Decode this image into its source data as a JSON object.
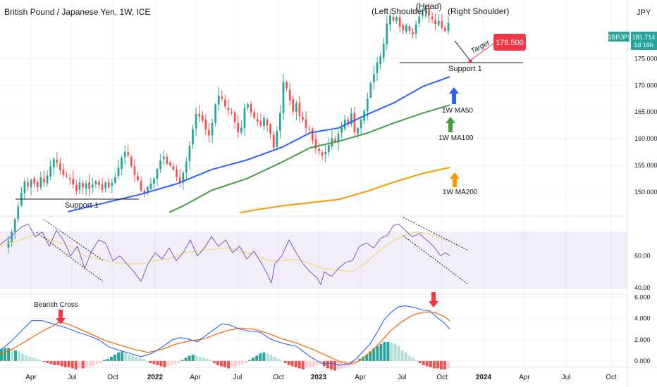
{
  "header": {
    "title": "British Pound / Japanese Yen, 1W, ICE",
    "currency": "JPY"
  },
  "price_badge": {
    "symbol": "GBPJPY",
    "price": "181.714",
    "countdown": "1d 16h"
  },
  "chart_data": [
    {
      "type": "candlestick",
      "title": "British Pound / Japanese Yen, 1W, ICE",
      "x_ticks": [
        "Apr",
        "Jul",
        "Oct",
        "2022",
        "Apr",
        "Jul",
        "Oct",
        "2023",
        "Apr",
        "Jul",
        "Oct",
        "2024",
        "Apr",
        "Jul",
        "Oct"
      ],
      "y_ticks": [
        "150.000",
        "155.000",
        "160.000",
        "165.000",
        "170.000",
        "175.000"
      ],
      "ylim": [
        145.5,
        186
      ],
      "close_series": [
        140.8,
        142.5,
        144.9,
        147.3,
        149.8,
        152.0,
        151.1,
        152.3,
        151.6,
        150.9,
        152.7,
        151.8,
        153.1,
        154.8,
        156.2,
        155.5,
        154.1,
        153.2,
        152.9,
        152.4,
        151.4,
        150.2,
        151.8,
        150.9,
        151.6,
        150.6,
        151.4,
        152.0,
        151.3,
        150.4,
        151.8,
        150.9,
        151.7,
        152.8,
        154.6,
        156.4,
        157.6,
        156.9,
        154.8,
        153.2,
        152.2,
        150.3,
        149.6,
        150.9,
        151.6,
        152.5,
        154.3,
        155.9,
        156.7,
        155.3,
        155.0,
        154.2,
        152.8,
        151.8,
        153.6,
        155.7,
        158.7,
        161.8,
        164.6,
        164.2,
        163.3,
        161.7,
        160.6,
        162.9,
        166.4,
        168.1,
        167.5,
        166.1,
        165.3,
        164.8,
        163.1,
        161.2,
        162.1,
        165.8,
        166.5,
        164.9,
        163.9,
        163.2,
        162.4,
        163.9,
        162.5,
        160.9,
        158.3,
        161.4,
        164.8,
        170.6,
        169.4,
        167.2,
        165.1,
        166.7,
        164.2,
        163.5,
        162.0,
        161.8,
        159.7,
        158.1,
        157.7,
        156.8,
        157.5,
        158.8,
        160.1,
        159.4,
        160.9,
        162.1,
        163.6,
        162.7,
        164.8,
        161.2,
        162.0,
        163.6,
        165.2,
        167.5,
        170.4,
        172.1,
        174.3,
        175.4,
        177.8,
        181.6,
        183.1,
        182.2,
        182.8,
        181.0,
        180.3,
        181.2,
        180.2,
        179.5,
        181.4,
        182.9,
        183.5,
        184.6,
        183.1,
        182.4,
        181.5,
        182.1,
        180.8,
        180.2,
        181.7
      ],
      "ma50": [
        [
          96,
          146.3
        ],
        [
          200,
          149.6
        ],
        [
          250,
          151.5
        ],
        [
          300,
          154.2
        ],
        [
          350,
          156.0
        ],
        [
          400,
          158.4
        ],
        [
          440,
          161.1
        ],
        [
          480,
          162.0
        ],
        [
          520,
          164.5
        ],
        [
          560,
          166.8
        ],
        [
          600,
          169.8
        ],
        [
          638,
          171.6
        ]
      ],
      "ma100": [
        [
          240,
          146.2
        ],
        [
          260,
          147.4
        ],
        [
          300,
          150.3
        ],
        [
          350,
          152.5
        ],
        [
          400,
          155.6
        ],
        [
          440,
          158.3
        ],
        [
          480,
          159.5
        ],
        [
          520,
          161.0
        ],
        [
          560,
          163.0
        ],
        [
          600,
          164.8
        ],
        [
          638,
          166.3
        ]
      ],
      "ma200": [
        [
          340,
          146.1
        ],
        [
          360,
          146.6
        ],
        [
          400,
          147.4
        ],
        [
          440,
          148.0
        ],
        [
          480,
          148.6
        ],
        [
          520,
          150.1
        ],
        [
          560,
          151.9
        ],
        [
          600,
          153.5
        ],
        [
          638,
          154.6
        ]
      ],
      "annotations": {
        "left_shoulder": "(Left Shoulder)",
        "head": "(Head)",
        "right_shoulder": "(Right Shoulder)",
        "target_label": "Target",
        "target_value": "176.500",
        "support_top": "Support 1",
        "support_bottom": "Support 1",
        "ma50_label": "1W MA50",
        "ma100_label": "1W MA100",
        "ma200_label": "1W MA200"
      },
      "colors": {
        "up": "#26a69a",
        "down": "#ef5350",
        "ma50": "#2962ff",
        "ma100": "#43a047",
        "ma200": "#ff9800",
        "target_badge": "#f23645",
        "price_badge": "#26a69a",
        "arrow_blue": "#2962ff",
        "arrow_green": "#43a047",
        "arrow_orange": "#ff9800",
        "arrow_red": "#f23645"
      }
    },
    {
      "type": "line",
      "name": "RSI",
      "y_ticks": [
        "40.00",
        "60.00"
      ],
      "ylim": [
        36,
        85
      ],
      "rsi": [
        [
          0,
          67
        ],
        [
          15,
          72
        ],
        [
          30,
          78
        ],
        [
          40,
          80
        ],
        [
          50,
          72
        ],
        [
          60,
          75
        ],
        [
          70,
          66
        ],
        [
          80,
          76
        ],
        [
          90,
          70
        ],
        [
          100,
          60
        ],
        [
          110,
          66
        ],
        [
          120,
          52
        ],
        [
          130,
          63
        ],
        [
          140,
          70
        ],
        [
          150,
          68
        ],
        [
          160,
          57
        ],
        [
          170,
          60
        ],
        [
          180,
          55
        ],
        [
          190,
          50
        ],
        [
          200,
          44
        ],
        [
          210,
          55
        ],
        [
          220,
          62
        ],
        [
          230,
          58
        ],
        [
          240,
          65
        ],
        [
          250,
          57
        ],
        [
          260,
          62
        ],
        [
          270,
          70
        ],
        [
          280,
          60
        ],
        [
          290,
          65
        ],
        [
          300,
          72
        ],
        [
          310,
          66
        ],
        [
          320,
          70
        ],
        [
          330,
          62
        ],
        [
          340,
          66
        ],
        [
          350,
          58
        ],
        [
          360,
          63
        ],
        [
          370,
          56
        ],
        [
          380,
          48
        ],
        [
          385,
          43
        ],
        [
          390,
          55
        ],
        [
          400,
          60
        ],
        [
          410,
          70
        ],
        [
          420,
          62
        ],
        [
          430,
          55
        ],
        [
          440,
          50
        ],
        [
          450,
          46
        ],
        [
          455,
          42
        ],
        [
          460,
          50
        ],
        [
          470,
          47
        ],
        [
          480,
          52
        ],
        [
          490,
          56
        ],
        [
          500,
          57
        ],
        [
          510,
          66
        ],
        [
          520,
          68
        ],
        [
          530,
          65
        ],
        [
          540,
          71
        ],
        [
          550,
          73
        ],
        [
          558,
          79
        ],
        [
          565,
          80
        ],
        [
          575,
          76
        ],
        [
          585,
          72
        ],
        [
          595,
          74
        ],
        [
          605,
          70
        ],
        [
          615,
          66
        ],
        [
          625,
          60
        ],
        [
          632,
          62
        ],
        [
          638,
          60
        ]
      ],
      "rsi_ma": [
        [
          0,
          66
        ],
        [
          30,
          70
        ],
        [
          45,
          73
        ],
        [
          60,
          72
        ],
        [
          80,
          69
        ],
        [
          100,
          66
        ],
        [
          120,
          60
        ],
        [
          140,
          58
        ],
        [
          160,
          56
        ],
        [
          180,
          55
        ],
        [
          200,
          55
        ],
        [
          220,
          57
        ],
        [
          240,
          58
        ],
        [
          260,
          62
        ],
        [
          280,
          63
        ],
        [
          300,
          64
        ],
        [
          320,
          65
        ],
        [
          340,
          63
        ],
        [
          360,
          61
        ],
        [
          380,
          57
        ],
        [
          400,
          57
        ],
        [
          420,
          58
        ],
        [
          440,
          55
        ],
        [
          460,
          52
        ],
        [
          480,
          51
        ],
        [
          500,
          50
        ],
        [
          520,
          56
        ],
        [
          540,
          64
        ],
        [
          560,
          70
        ],
        [
          575,
          73
        ],
        [
          590,
          75
        ],
        [
          605,
          74
        ],
        [
          620,
          72
        ],
        [
          638,
          69
        ]
      ],
      "band": [
        50,
        70
      ]
    },
    {
      "type": "line",
      "name": "MACD",
      "y_ticks": [
        "6.000",
        "4.000",
        "2.000",
        "0.000"
      ],
      "ylim": [
        -0.6,
        6.3
      ],
      "macd": [
        [
          0,
          1.0
        ],
        [
          15,
          1.8
        ],
        [
          30,
          2.8
        ],
        [
          45,
          3.8
        ],
        [
          60,
          3.8
        ],
        [
          75,
          3.5
        ],
        [
          85,
          3.3
        ],
        [
          95,
          3.1
        ],
        [
          110,
          2.7
        ],
        [
          125,
          2.4
        ],
        [
          140,
          2.0
        ],
        [
          155,
          1.3
        ],
        [
          170,
          1.0
        ],
        [
          185,
          0.7
        ],
        [
          200,
          0.4
        ],
        [
          215,
          0.7
        ],
        [
          230,
          1.3
        ],
        [
          245,
          2.0
        ],
        [
          255,
          2.2
        ],
        [
          265,
          2.1
        ],
        [
          280,
          1.8
        ],
        [
          290,
          2.3
        ],
        [
          300,
          2.8
        ],
        [
          315,
          3.5
        ],
        [
          325,
          3.4
        ],
        [
          340,
          3.0
        ],
        [
          355,
          2.8
        ],
        [
          370,
          2.7
        ],
        [
          380,
          2.2
        ],
        [
          390,
          1.9
        ],
        [
          405,
          1.6
        ],
        [
          420,
          1.4
        ],
        [
          430,
          0.9
        ],
        [
          440,
          0.4
        ],
        [
          450,
          0.0
        ],
        [
          460,
          -0.3
        ],
        [
          470,
          -0.2
        ],
        [
          480,
          -0.4
        ],
        [
          495,
          -0.3
        ],
        [
          505,
          0.2
        ],
        [
          515,
          0.9
        ],
        [
          525,
          1.6
        ],
        [
          535,
          2.7
        ],
        [
          545,
          3.9
        ],
        [
          555,
          4.6
        ],
        [
          565,
          5.1
        ],
        [
          575,
          5.2
        ],
        [
          590,
          5.0
        ],
        [
          600,
          4.8
        ],
        [
          610,
          4.7
        ],
        [
          620,
          4.1
        ],
        [
          630,
          3.6
        ],
        [
          638,
          3.0
        ]
      ],
      "signal": [
        [
          0,
          0.6
        ],
        [
          20,
          1.2
        ],
        [
          40,
          2.0
        ],
        [
          60,
          2.8
        ],
        [
          75,
          3.3
        ],
        [
          85,
          3.7
        ],
        [
          95,
          3.5
        ],
        [
          110,
          3.1
        ],
        [
          130,
          2.5
        ],
        [
          150,
          1.9
        ],
        [
          170,
          1.5
        ],
        [
          190,
          1.1
        ],
        [
          210,
          0.8
        ],
        [
          230,
          1.1
        ],
        [
          250,
          1.6
        ],
        [
          270,
          1.9
        ],
        [
          290,
          2.1
        ],
        [
          310,
          2.6
        ],
        [
          325,
          2.9
        ],
        [
          340,
          3.1
        ],
        [
          360,
          3.0
        ],
        [
          380,
          2.6
        ],
        [
          400,
          2.1
        ],
        [
          420,
          1.7
        ],
        [
          440,
          1.2
        ],
        [
          460,
          0.6
        ],
        [
          480,
          0.0
        ],
        [
          495,
          -0.3
        ],
        [
          510,
          0.0
        ],
        [
          525,
          0.8
        ],
        [
          540,
          1.8
        ],
        [
          555,
          2.9
        ],
        [
          570,
          3.7
        ],
        [
          585,
          4.3
        ],
        [
          600,
          4.6
        ],
        [
          615,
          4.6
        ],
        [
          630,
          4.2
        ],
        [
          638,
          3.8
        ]
      ],
      "histogram": [
        1.1,
        1.2,
        1.2,
        1.0,
        1.0,
        0.9,
        0.7,
        0.5,
        0.4,
        0.3,
        0.2,
        0.1,
        -0.1,
        -0.2,
        -0.3,
        -0.4,
        -0.4,
        -0.5,
        -0.6,
        -0.6,
        -0.7,
        -0.8,
        -0.7,
        -0.7,
        -0.6,
        -0.5,
        -0.4,
        -0.3,
        -0.2,
        0.1,
        0.2,
        0.4,
        0.6,
        0.8,
        0.9,
        0.8,
        0.6,
        0.5,
        0.4,
        0.3,
        0.2,
        0.0,
        -0.2,
        -0.3,
        -0.4,
        -0.5,
        -0.6,
        -0.5,
        -0.4,
        -0.3,
        -0.2,
        0.1,
        0.3,
        0.5,
        0.6,
        0.5,
        0.4,
        0.3,
        0.2,
        0.1,
        -0.2,
        -0.4,
        -0.5,
        -0.6,
        -0.7,
        -0.6,
        -0.5,
        -0.4,
        -0.3,
        -0.2,
        0.1,
        0.3,
        0.5,
        0.7,
        0.8,
        0.7,
        0.6,
        0.4,
        0.2,
        0.1,
        -0.2,
        -0.4,
        -0.5,
        -0.6,
        -0.7,
        -0.8,
        -0.7,
        -0.6,
        -0.5,
        -0.4,
        -0.3,
        -0.5,
        -0.7,
        -0.8,
        -0.9,
        -0.8,
        -0.7,
        -0.6,
        -0.5,
        -0.4,
        -0.3,
        0.2,
        0.4,
        0.6,
        0.9,
        1.2,
        1.4,
        1.6,
        1.8,
        1.8,
        1.7,
        1.6,
        1.4,
        1.0,
        0.8,
        0.5,
        0.3,
        0.1,
        -0.2,
        -0.4,
        -0.5,
        -0.6,
        -0.7,
        -0.7,
        -0.8,
        -0.8,
        -0.7
      ],
      "annotation": "Bearish Cross"
    }
  ]
}
